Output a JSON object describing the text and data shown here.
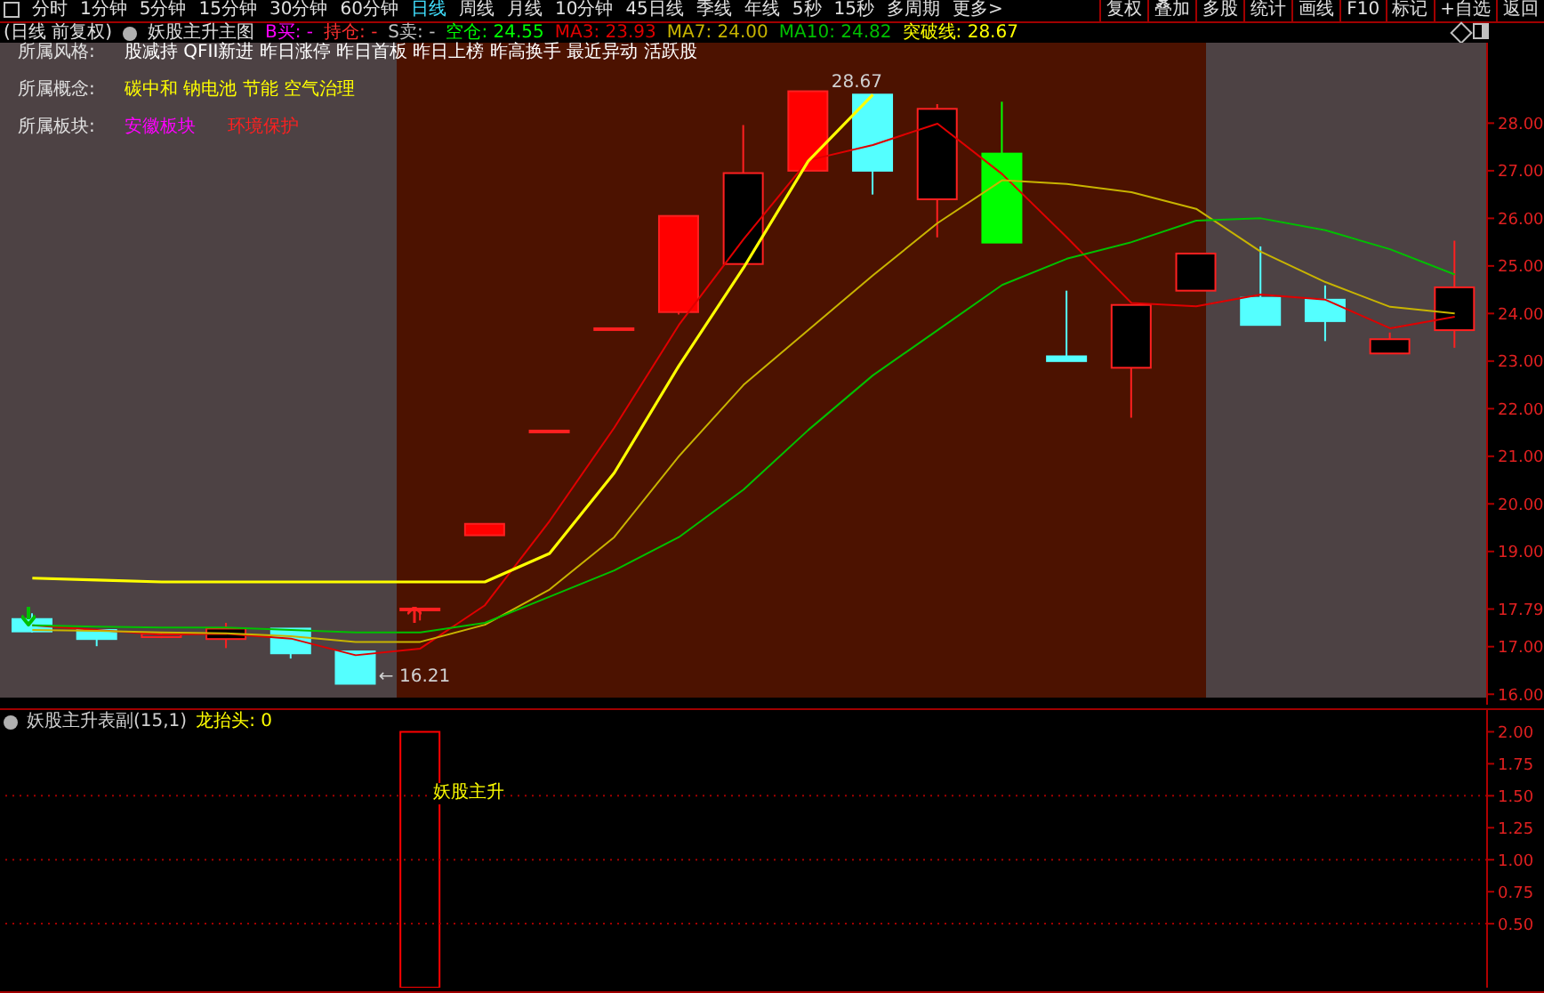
{
  "chart_data": [
    {
      "type": "candlestick",
      "title": "妖股主升主图",
      "subtitle": "(日线 前复权)",
      "categories": [
        null,
        null,
        null,
        null,
        null,
        null,
        null,
        null,
        null,
        null,
        null,
        null,
        null,
        null,
        null,
        null,
        null,
        null,
        null,
        null,
        null,
        null,
        null
      ],
      "ohlc": [
        [
          17.58,
          17.7,
          17.3,
          17.32
        ],
        [
          17.35,
          17.35,
          17.01,
          17.16
        ],
        [
          17.2,
          17.3,
          17.18,
          17.27
        ],
        [
          17.16,
          17.5,
          16.97,
          17.38
        ],
        [
          17.38,
          17.38,
          16.75,
          16.86
        ],
        [
          16.9,
          16.9,
          16.21,
          16.22
        ],
        [
          17.79,
          17.8,
          17.55,
          17.8
        ],
        [
          19.34,
          19.58,
          19.34,
          19.58
        ],
        [
          21.54,
          21.54,
          21.54,
          21.54
        ],
        [
          23.69,
          23.69,
          23.69,
          23.69
        ],
        [
          24.03,
          26.05,
          23.98,
          26.05
        ],
        [
          25.04,
          27.96,
          25.04,
          26.95
        ],
        [
          27.0,
          28.67,
          27.0,
          28.67
        ],
        [
          28.6,
          28.6,
          26.5,
          27.0
        ],
        [
          26.4,
          28.4,
          25.6,
          28.3
        ],
        [
          27.36,
          28.45,
          25.49,
          25.49
        ],
        [
          23.1,
          24.48,
          23.0,
          23.0
        ],
        [
          22.86,
          24.18,
          21.81,
          24.18
        ],
        [
          24.48,
          25.26,
          24.48,
          25.26
        ],
        [
          24.33,
          25.41,
          23.76,
          23.76
        ],
        [
          24.29,
          24.59,
          23.42,
          23.84
        ],
        [
          23.16,
          23.6,
          23.16,
          23.46
        ],
        [
          23.65,
          25.53,
          23.28,
          24.55
        ]
      ],
      "colors": [
        "#54ffff",
        "#54ffff",
        "#4d4244",
        "#000000",
        "#54ffff",
        "#54ffff",
        "#ff0000",
        "#ff0000",
        "#ff0000",
        "#ff0000",
        "#ff0000",
        "#000000",
        "#ff0000",
        "#54ffff",
        "#000000",
        "#00ff00",
        "#54ffff",
        "#000000",
        "#000000",
        "#54ffff",
        "#54ffff",
        "#000000",
        "#000000"
      ],
      "series": [
        {
          "type": "line",
          "name": "MA3: 23.93",
          "color": "#e00000",
          "values": [
            17.45,
            17.35,
            17.25,
            17.27,
            17.17,
            16.82,
            16.96,
            17.87,
            19.64,
            21.6,
            23.76,
            25.56,
            27.22,
            27.54,
            27.99,
            26.93,
            25.6,
            24.22,
            24.15,
            24.4,
            24.29,
            23.69,
            23.93
          ]
        },
        {
          "type": "line",
          "name": "MA7: 24.00",
          "color": "#c8b400",
          "values": [
            17.35,
            17.33,
            17.3,
            17.28,
            17.22,
            17.1,
            17.1,
            17.46,
            18.2,
            19.3,
            21.0,
            22.5,
            23.65,
            24.8,
            25.9,
            26.8,
            26.72,
            26.55,
            26.2,
            25.3,
            24.66,
            24.14,
            24.0
          ]
        },
        {
          "type": "line",
          "name": "MA10: 24.82",
          "color": "#00c000",
          "values": [
            17.45,
            17.42,
            17.4,
            17.4,
            17.35,
            17.3,
            17.3,
            17.5,
            18.05,
            18.6,
            19.3,
            20.3,
            21.55,
            22.7,
            23.65,
            24.6,
            25.15,
            25.5,
            25.95,
            26.0,
            25.75,
            25.35,
            24.82
          ]
        },
        {
          "type": "line",
          "name": "突破线: 28.67",
          "color": "#ffff00",
          "values": [
            18.44,
            18.4,
            18.36,
            18.36,
            18.36,
            18.36,
            18.36,
            18.36,
            18.96,
            20.65,
            22.9,
            24.96,
            27.2,
            28.6,
            null,
            null,
            null,
            null,
            null,
            null,
            null,
            null,
            null
          ]
        }
      ],
      "ylim": [
        15.78,
        29.69
      ],
      "yticks": [
        {
          "value": 16,
          "label": "16.00"
        },
        {
          "value": 17,
          "label": "17.00"
        },
        {
          "value": 17.79,
          "label": "17.79"
        },
        {
          "value": 19,
          "label": "19.00"
        },
        {
          "value": 20,
          "label": "20.00"
        },
        {
          "value": 21,
          "label": "21.00"
        },
        {
          "value": 22,
          "label": "22.00"
        },
        {
          "value": 23,
          "label": "23.00"
        },
        {
          "value": 24,
          "label": "24.00"
        },
        {
          "value": 25,
          "label": "25.00"
        },
        {
          "value": 26,
          "label": "26.00"
        },
        {
          "value": 27,
          "label": "27.00"
        },
        {
          "value": 28,
          "label": "28.00"
        }
      ],
      "legend": "top left",
      "marker": "none",
      "line_style": "solid",
      "annotations": [
        "分时",
        "1分钟",
        "5分钟",
        "15分钟",
        "30分钟",
        "60分钟",
        "日线",
        "周线",
        "月线",
        "10分钟",
        "45日线",
        "季线",
        "年线",
        "5秒",
        "15秒",
        "多周期",
        "更多>",
        "复权",
        "叠加",
        "多股",
        "统计",
        "画线",
        "F10",
        "标记",
        "+自选",
        "返回",
        "B买: -",
        "持仓: -",
        "S卖: -",
        "空仓: 24.55",
        "所属风格:",
        "股减持 QFII新进 昨日涨停 昨日首板 昨日上榜 昨高换手 最近异动 活跃股",
        "所属概念:",
        "碳中和 钠电池 节能 空气治理",
        "所属板块:",
        "安徽板块",
        "环境保护",
        "28.67",
        "← 16.21"
      ]
    },
    {
      "type": "bar",
      "title": "妖股主升表副(15,1)",
      "categories": [
        null,
        null,
        null,
        null,
        null,
        null,
        null,
        null,
        null,
        null,
        null,
        null,
        null,
        null,
        null,
        null,
        null,
        null,
        null,
        null,
        null,
        null,
        null
      ],
      "values": [
        null,
        null,
        null,
        null,
        null,
        null,
        2,
        null,
        null,
        null,
        null,
        null,
        null,
        null,
        null,
        null,
        null,
        null,
        null,
        null,
        null,
        null,
        null
      ],
      "color": "#ff0000",
      "ylim": [
        0,
        2.17
      ],
      "yticks": [
        {
          "value": 0.5,
          "label": "0.50"
        },
        {
          "value": 0.75,
          "label": "0.75"
        },
        {
          "value": 1,
          "label": "1.00"
        },
        {
          "value": 1.25,
          "label": "1.25"
        },
        {
          "value": 1.5,
          "label": "1.50"
        },
        {
          "value": 1.75,
          "label": "1.75"
        },
        {
          "value": 2,
          "label": "2.00"
        }
      ],
      "ref_lines": [
        {
          "axis": "y",
          "value": 1.5,
          "color": "#a00000",
          "line_style": "dotted"
        },
        {
          "axis": "y",
          "value": 1,
          "color": "#a00000",
          "line_style": "dotted"
        },
        {
          "axis": "y",
          "value": 0.5,
          "color": "#a00000",
          "line_style": "dotted"
        }
      ],
      "annotations": [
        "龙抬头: 0",
        {
          "text": "妖股主升",
          "y": 1.5
        }
      ]
    }
  ]
}
